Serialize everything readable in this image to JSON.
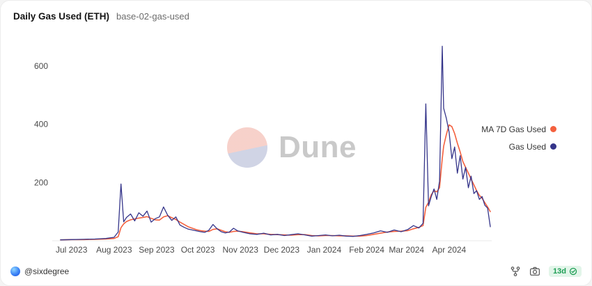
{
  "header": {
    "title": "Daily Gas Used (ETH)",
    "subtitle": "base-02-gas-used"
  },
  "watermark": {
    "text": "Dune"
  },
  "footer": {
    "author_handle": "@sixdegree",
    "refresh_age": "13d"
  },
  "icons": {
    "fork": "fork-icon",
    "camera": "camera-icon",
    "freshness": "clock-check-icon",
    "avatar": "author-avatar",
    "dune_logo": "dune-logo-icon"
  },
  "colors": {
    "ma_line": "#f4603e",
    "gas_line": "#35358a",
    "badge_green": "#1d9e55",
    "badge_bg": "#e2f5e9",
    "avatar_blue": "#3b82f6",
    "watermark_pink": "#f6cdc6",
    "watermark_purple": "#ccd0e3"
  },
  "chart_data": {
    "type": "line",
    "title": "Daily Gas Used (ETH)",
    "xlabel": "",
    "ylabel": "",
    "ylim": [
      0,
      700
    ],
    "grid": false,
    "legend_position": "right",
    "y_ticks": [
      200,
      400,
      600
    ],
    "x_ticks": [
      {
        "label": "Jul 2023",
        "date": "2023-07-01"
      },
      {
        "label": "Aug 2023",
        "date": "2023-08-01"
      },
      {
        "label": "Sep 2023",
        "date": "2023-09-01"
      },
      {
        "label": "Oct 2023",
        "date": "2023-10-01"
      },
      {
        "label": "Nov 2023",
        "date": "2023-11-01"
      },
      {
        "label": "Dec 2023",
        "date": "2023-12-01"
      },
      {
        "label": "Jan 2024",
        "date": "2024-01-01"
      },
      {
        "label": "Feb 2024",
        "date": "2024-02-01"
      },
      {
        "label": "Mar 2024",
        "date": "2024-03-01"
      },
      {
        "label": "Apr 2024",
        "date": "2024-04-01"
      }
    ],
    "x": [
      "2023-06-23",
      "2023-07-01",
      "2023-07-10",
      "2023-07-18",
      "2023-07-26",
      "2023-08-01",
      "2023-08-04",
      "2023-08-06",
      "2023-08-08",
      "2023-08-10",
      "2023-08-13",
      "2023-08-16",
      "2023-08-19",
      "2023-08-22",
      "2023-08-25",
      "2023-08-28",
      "2023-08-31",
      "2023-09-03",
      "2023-09-06",
      "2023-09-09",
      "2023-09-12",
      "2023-09-15",
      "2023-09-18",
      "2023-09-21",
      "2023-09-24",
      "2023-09-27",
      "2023-09-30",
      "2023-10-03",
      "2023-10-06",
      "2023-10-09",
      "2023-10-12",
      "2023-10-15",
      "2023-10-18",
      "2023-10-21",
      "2023-10-24",
      "2023-10-27",
      "2023-10-30",
      "2023-11-03",
      "2023-11-08",
      "2023-11-13",
      "2023-11-18",
      "2023-11-23",
      "2023-11-28",
      "2023-12-03",
      "2023-12-08",
      "2023-12-13",
      "2023-12-18",
      "2023-12-23",
      "2023-12-28",
      "2024-01-02",
      "2024-01-07",
      "2024-01-12",
      "2024-01-17",
      "2024-01-22",
      "2024-01-27",
      "2024-02-01",
      "2024-02-06",
      "2024-02-11",
      "2024-02-16",
      "2024-02-21",
      "2024-02-26",
      "2024-03-02",
      "2024-03-06",
      "2024-03-10",
      "2024-03-13",
      "2024-03-15",
      "2024-03-17",
      "2024-03-19",
      "2024-03-21",
      "2024-03-23",
      "2024-03-25",
      "2024-03-27",
      "2024-03-28",
      "2024-03-30",
      "2024-04-01",
      "2024-04-03",
      "2024-04-05",
      "2024-04-07",
      "2024-04-09",
      "2024-04-11",
      "2024-04-13",
      "2024-04-15",
      "2024-04-17",
      "2024-04-19",
      "2024-04-21",
      "2024-04-23",
      "2024-04-25",
      "2024-04-27",
      "2024-04-29",
      "2024-05-01"
    ],
    "series": [
      {
        "name": "MA 7D Gas Used",
        "color": "#f4603e",
        "values": [
          3,
          4,
          4,
          5,
          6,
          8,
          14,
          45,
          58,
          66,
          72,
          75,
          78,
          80,
          83,
          77,
          72,
          71,
          82,
          86,
          79,
          73,
          64,
          56,
          48,
          43,
          38,
          35,
          33,
          32,
          39,
          41,
          36,
          31,
          29,
          32,
          33,
          31,
          27,
          24,
          24,
          22,
          21,
          20,
          19,
          21,
          21,
          18,
          17,
          18,
          18,
          17,
          17,
          16,
          16,
          18,
          22,
          26,
          30,
          32,
          33,
          35,
          41,
          46,
          52,
          115,
          132,
          158,
          172,
          168,
          182,
          282,
          325,
          365,
          398,
          392,
          368,
          335,
          305,
          272,
          252,
          232,
          212,
          192,
          172,
          156,
          146,
          131,
          116,
          100
        ]
      },
      {
        "name": "Gas Used",
        "color": "#35358a",
        "values": [
          3,
          4,
          5,
          6,
          8,
          12,
          30,
          195,
          65,
          80,
          92,
          68,
          96,
          84,
          102,
          64,
          76,
          82,
          116,
          88,
          70,
          82,
          54,
          46,
          40,
          37,
          34,
          31,
          29,
          36,
          56,
          41,
          31,
          27,
          30,
          43,
          34,
          29,
          24,
          22,
          26,
          20,
          22,
          18,
          21,
          24,
          20,
          16,
          18,
          20,
          17,
          19,
          16,
          15,
          18,
          22,
          27,
          34,
          29,
          37,
          31,
          39,
          52,
          44,
          60,
          470,
          120,
          152,
          178,
          142,
          205,
          668,
          455,
          420,
          372,
          282,
          322,
          232,
          292,
          212,
          252,
          182,
          222,
          162,
          172,
          142,
          152,
          122,
          112,
          48
        ]
      }
    ]
  }
}
